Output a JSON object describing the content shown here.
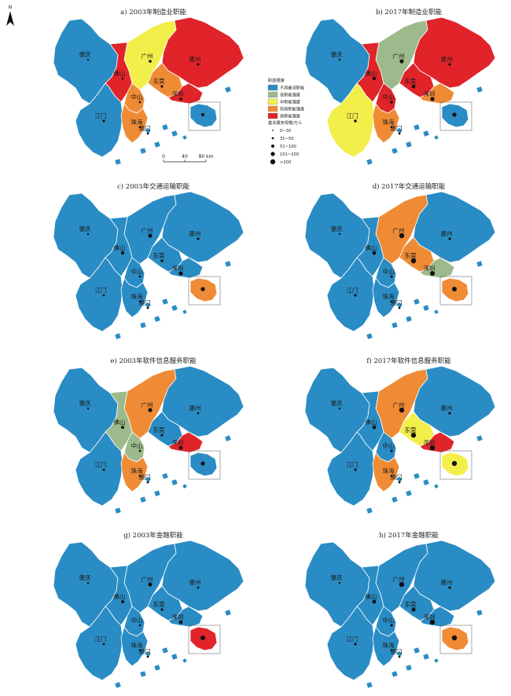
{
  "north_arrow": {
    "label": "N"
  },
  "panels": [
    {
      "title": "a) 2003年制造业职能",
      "fill": {
        "zhaoqing": "#2a8cc4",
        "guangzhou": "#f2ef4a",
        "foshan": "#e0242a",
        "huizhou": "#e0242a",
        "dongguan": "#f08b35",
        "shenzhen": "#e0242a",
        "jiangmen": "#2a8cc4",
        "zhongshan": "#f08b35",
        "zhuhai": "#f08b35",
        "hongkong": "#2a8cc4",
        "macau": "#2a8cc4"
      }
    },
    {
      "title": "b) 2017年制造业职能",
      "fill": {
        "zhaoqing": "#2a8cc4",
        "guangzhou": "#9cba8b",
        "foshan": "#e0242a",
        "huizhou": "#e0242a",
        "dongguan": "#e0242a",
        "shenzhen": "#f08b35",
        "jiangmen": "#f2ef4a",
        "zhongshan": "#e0242a",
        "zhuhai": "#f08b35",
        "hongkong": "#2a8cc4",
        "macau": "#2a8cc4"
      }
    },
    {
      "title": "c) 2003年交通运输职能",
      "fill": {
        "zhaoqing": "#2a8cc4",
        "guangzhou": "#2a8cc4",
        "foshan": "#2a8cc4",
        "huizhou": "#2a8cc4",
        "dongguan": "#2a8cc4",
        "shenzhen": "#2a8cc4",
        "jiangmen": "#2a8cc4",
        "zhongshan": "#2a8cc4",
        "zhuhai": "#2a8cc4",
        "hongkong": "#f08b35",
        "macau": "#2a8cc4"
      }
    },
    {
      "title": "d) 2017年交通运输职能",
      "fill": {
        "zhaoqing": "#2a8cc4",
        "guangzhou": "#f08b35",
        "foshan": "#2a8cc4",
        "huizhou": "#2a8cc4",
        "dongguan": "#f08b35",
        "shenzhen": "#9cba8b",
        "jiangmen": "#2a8cc4",
        "zhongshan": "#2a8cc4",
        "zhuhai": "#2a8cc4",
        "hongkong": "#f08b35",
        "macau": "#2a8cc4"
      }
    },
    {
      "title": "e) 2003年软件信息服务职能",
      "fill": {
        "zhaoqing": "#2a8cc4",
        "guangzhou": "#f08b35",
        "foshan": "#9cba8b",
        "huizhou": "#2a8cc4",
        "dongguan": "#2a8cc4",
        "shenzhen": "#e0242a",
        "jiangmen": "#2a8cc4",
        "zhongshan": "#9cba8b",
        "zhuhai": "#f08b35",
        "hongkong": "#2a8cc4",
        "macau": "#2a8cc4"
      }
    },
    {
      "title": "f) 2017年软件信息服务职能",
      "fill": {
        "zhaoqing": "#2a8cc4",
        "guangzhou": "#f08b35",
        "foshan": "#2a8cc4",
        "huizhou": "#2a8cc4",
        "dongguan": "#f2ef4a",
        "shenzhen": "#e0242a",
        "jiangmen": "#2a8cc4",
        "zhongshan": "#2a8cc4",
        "zhuhai": "#f08b35",
        "hongkong": "#f2ef4a",
        "macau": "#2a8cc4"
      }
    },
    {
      "title": "g) 2003年金融职能",
      "fill": {
        "zhaoqing": "#2a8cc4",
        "guangzhou": "#2a8cc4",
        "foshan": "#2a8cc4",
        "huizhou": "#2a8cc4",
        "dongguan": "#2a8cc4",
        "shenzhen": "#2a8cc4",
        "jiangmen": "#2a8cc4",
        "zhongshan": "#2a8cc4",
        "zhuhai": "#2a8cc4",
        "hongkong": "#e0242a",
        "macau": "#2a8cc4"
      }
    },
    {
      "title": "h) 2017年金融职能",
      "fill": {
        "zhaoqing": "#2a8cc4",
        "guangzhou": "#2a8cc4",
        "foshan": "#2a8cc4",
        "huizhou": "#2a8cc4",
        "dongguan": "#2a8cc4",
        "shenzhen": "#2a8cc4",
        "jiangmen": "#2a8cc4",
        "zhongshan": "#2a8cc4",
        "zhuhai": "#2a8cc4",
        "hongkong": "#f08b35",
        "macau": "#2a8cc4"
      }
    }
  ],
  "cities": [
    {
      "key": "zhaoqing",
      "label": "肇庆"
    },
    {
      "key": "guangzhou",
      "label": "广州"
    },
    {
      "key": "huizhou",
      "label": "惠州"
    },
    {
      "key": "foshan",
      "label": "佛山"
    },
    {
      "key": "dongguan",
      "label": "东莞"
    },
    {
      "key": "zhongshan",
      "label": "中山"
    },
    {
      "key": "shenzhen",
      "label": "深圳"
    },
    {
      "key": "jiangmen",
      "label": "江门"
    },
    {
      "key": "zhuhai",
      "label": "珠海"
    },
    {
      "key": "macau",
      "label": "澳门"
    },
    {
      "key": "hongkong",
      "label": ""
    }
  ],
  "legend": {
    "title": "职能强度",
    "classes": [
      {
        "label": "不具备该职能",
        "color": "#2a8cc4"
      },
      {
        "label": "低职能强度",
        "color": "#9cba8b"
      },
      {
        "label": "中职能强度",
        "color": "#f2ef4a"
      },
      {
        "label": "较高职能强度",
        "color": "#f08b35"
      },
      {
        "label": "高职能强度",
        "color": "#e0242a"
      }
    ],
    "size_title": "基本服务规模/万人",
    "sizes": [
      "0~30",
      "31~50",
      "51~100",
      "101~200",
      ">200"
    ]
  },
  "scale_bar": {
    "labels": [
      "0",
      "40",
      "80 km"
    ]
  }
}
